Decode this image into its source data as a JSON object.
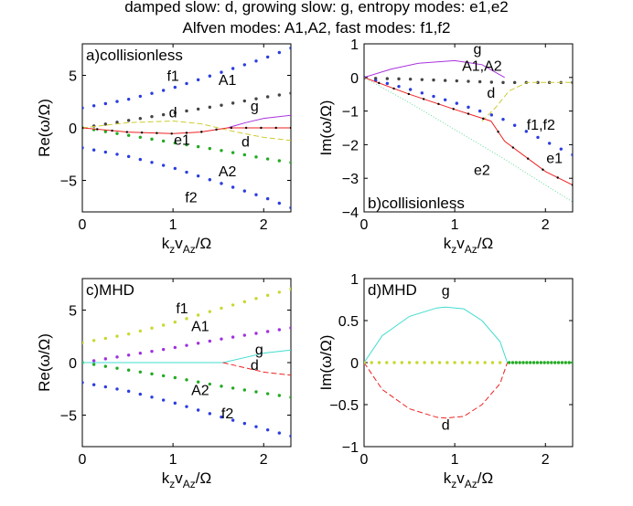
{
  "header": {
    "line1": "damped slow: d, growing slow: g, entropy modes: e1,e2",
    "line2": "Alfven modes: A1,A2, fast modes: f1,f2"
  },
  "colors": {
    "f1": "#2b3de0",
    "f2": "#2b3de0",
    "A1": "#444444",
    "A2": "#22aa22",
    "g": "#aa33dd",
    "d": "#cccc33",
    "e1": "#ee2222",
    "e2": "#66dd99",
    "mhd_f": "#c8d830",
    "mhd_A1": "#a030e0",
    "mhd_g": "#40dcd0",
    "mhd_d": "#ee2222",
    "axis": "#000000"
  },
  "chart_data": [
    {
      "id": "a",
      "type": "line",
      "title": "a)collisionless",
      "xlabel": "k_z v_Az/Ω",
      "ylabel": "Re(ω/Ω)",
      "xlim": [
        0,
        2.3
      ],
      "ylim": [
        -8,
        8
      ],
      "xticks": [
        0,
        1,
        2
      ],
      "yticks": [
        -5,
        0,
        5
      ],
      "series": [
        {
          "name": "f1",
          "x": [
            0,
            0.5,
            1,
            1.5,
            2,
            2.3
          ],
          "y": [
            1.9,
            2.7,
            3.8,
            5.2,
            6.6,
            7.6
          ]
        },
        {
          "name": "f2",
          "x": [
            0,
            0.5,
            1,
            1.5,
            2,
            2.3
          ],
          "y": [
            -1.9,
            -2.7,
            -3.8,
            -5.2,
            -6.6,
            -7.6
          ]
        },
        {
          "name": "A1",
          "x": [
            0,
            0.5,
            1,
            1.5,
            2,
            2.3
          ],
          "y": [
            0,
            0.7,
            1.4,
            2.1,
            2.9,
            3.3
          ]
        },
        {
          "name": "A2",
          "x": [
            0,
            0.5,
            1,
            1.5,
            2,
            2.3
          ],
          "y": [
            0,
            -0.7,
            -1.4,
            -2.1,
            -2.9,
            -3.3
          ]
        },
        {
          "name": "d",
          "x": [
            0,
            0.5,
            1,
            1.3,
            1.5,
            1.7,
            2,
            2.3
          ],
          "y": [
            0,
            0.5,
            0.65,
            0.4,
            0,
            -0.4,
            -0.9,
            -1.2
          ]
        },
        {
          "name": "g",
          "x": [
            1.6,
            1.8,
            2,
            2.3
          ],
          "y": [
            0,
            0.5,
            0.9,
            1.2
          ]
        },
        {
          "name": "e1",
          "x": [
            0,
            0.5,
            1,
            1.3,
            1.6,
            2,
            2.3
          ],
          "y": [
            0,
            -0.4,
            -0.55,
            -0.4,
            0,
            0,
            0
          ]
        }
      ],
      "labels": [
        {
          "text": "f1",
          "x": 1.0,
          "y": 4.5
        },
        {
          "text": "A1",
          "x": 1.6,
          "y": 4.1
        },
        {
          "text": "d",
          "x": 1.0,
          "y": 1.0
        },
        {
          "text": "g",
          "x": 1.9,
          "y": 1.6
        },
        {
          "text": "e1",
          "x": 1.1,
          "y": -1.6
        },
        {
          "text": "d",
          "x": 1.8,
          "y": -1.8
        },
        {
          "text": "A2",
          "x": 1.6,
          "y": -4.6
        },
        {
          "text": "f2",
          "x": 1.2,
          "y": -7.1
        }
      ]
    },
    {
      "id": "b",
      "type": "line",
      "title": "b)collisionless",
      "xlabel": "k_z v_Az/Ω",
      "ylabel": "Im(ω/Ω)",
      "xlim": [
        0,
        2.3
      ],
      "ylim": [
        -4,
        1
      ],
      "xticks": [
        0,
        1,
        2
      ],
      "yticks": [
        -4,
        -3,
        -2,
        -1,
        0,
        1
      ],
      "series": [
        {
          "name": "g",
          "x": [
            0,
            0.3,
            0.6,
            1,
            1.3,
            1.55
          ],
          "y": [
            0,
            0.25,
            0.42,
            0.5,
            0.38,
            0
          ]
        },
        {
          "name": "A1",
          "x": [
            0,
            0.5,
            1,
            1.5,
            2,
            2.3
          ],
          "y": [
            -0.02,
            -0.05,
            -0.1,
            -0.15,
            -0.15,
            -0.15
          ]
        },
        {
          "name": "f1",
          "x": [
            0,
            0.5,
            1,
            1.5,
            2,
            2.3
          ],
          "y": [
            0,
            -0.35,
            -0.75,
            -1.2,
            -1.9,
            -2.3
          ]
        },
        {
          "name": "d",
          "x": [
            1.3,
            1.45,
            1.6,
            1.8,
            2.3
          ],
          "y": [
            -1.3,
            -0.9,
            -0.4,
            -0.15,
            -0.15
          ]
        },
        {
          "name": "e1",
          "x": [
            0,
            0.5,
            1,
            1.4,
            1.55,
            2,
            2.3
          ],
          "y": [
            0,
            -0.5,
            -0.95,
            -1.3,
            -1.9,
            -2.8,
            -3.2
          ]
        },
        {
          "name": "e2",
          "x": [
            0,
            0.5,
            1,
            1.5,
            2,
            2.3
          ],
          "y": [
            0,
            -0.75,
            -1.55,
            -2.35,
            -3.2,
            -3.7
          ]
        }
      ],
      "labels": [
        {
          "text": "g",
          "x": 1.25,
          "y": 0.7
        },
        {
          "text": "A1,A2",
          "x": 1.3,
          "y": 0.2
        },
        {
          "text": "d",
          "x": 1.4,
          "y": -0.6
        },
        {
          "text": "f1,f2",
          "x": 1.95,
          "y": -1.55
        },
        {
          "text": "e2",
          "x": 1.3,
          "y": -2.9
        },
        {
          "text": "e1",
          "x": 2.1,
          "y": -2.55
        }
      ]
    },
    {
      "id": "c",
      "type": "line",
      "title": "c)MHD",
      "xlabel": "k_z v_Az/Ω",
      "ylabel": "Re(ω/Ω)",
      "xlim": [
        0,
        2.3
      ],
      "ylim": [
        -8,
        8
      ],
      "xticks": [
        0,
        1,
        2
      ],
      "yticks": [
        -5,
        0,
        5
      ],
      "series": [
        {
          "name": "f1",
          "x": [
            0,
            0.5,
            1,
            1.5,
            2,
            2.3
          ],
          "y": [
            1.9,
            2.7,
            3.8,
            5.1,
            6.3,
            7.0
          ]
        },
        {
          "name": "f2",
          "x": [
            0,
            0.5,
            1,
            1.5,
            2,
            2.3
          ],
          "y": [
            -1.9,
            -2.7,
            -3.8,
            -5.1,
            -6.3,
            -7.0
          ]
        },
        {
          "name": "A1",
          "x": [
            0,
            0.5,
            1,
            1.5,
            2,
            2.3
          ],
          "y": [
            0,
            0.7,
            1.4,
            2.2,
            2.9,
            3.3
          ]
        },
        {
          "name": "A2",
          "x": [
            0,
            0.5,
            1,
            1.5,
            2,
            2.3
          ],
          "y": [
            0,
            -0.7,
            -1.4,
            -2.2,
            -2.9,
            -3.3
          ]
        },
        {
          "name": "g",
          "x": [
            0,
            1.55,
            1.8,
            2,
            2.3
          ],
          "y": [
            0,
            0,
            0.5,
            0.9,
            1.2
          ]
        },
        {
          "name": "d",
          "x": [
            1.55,
            1.8,
            2,
            2.3
          ],
          "y": [
            0,
            -0.5,
            -0.9,
            -1.2
          ]
        }
      ],
      "labels": [
        {
          "text": "f1",
          "x": 1.1,
          "y": 4.7
        },
        {
          "text": "A1",
          "x": 1.3,
          "y": 3.0
        },
        {
          "text": "g",
          "x": 1.95,
          "y": 0.8
        },
        {
          "text": "d",
          "x": 1.9,
          "y": -0.7
        },
        {
          "text": "A2",
          "x": 1.3,
          "y": -3.1
        },
        {
          "text": "f2",
          "x": 1.6,
          "y": -5.3
        }
      ]
    },
    {
      "id": "d",
      "type": "line",
      "title": "d)MHD",
      "xlabel": "k_z v_Az/Ω",
      "ylabel": "Im(ω/Ω)",
      "xlim": [
        0,
        2.3
      ],
      "ylim": [
        -1,
        1
      ],
      "xticks": [
        0,
        1,
        2
      ],
      "yticks": [
        -1,
        -0.5,
        0,
        0.5,
        1
      ],
      "series": [
        {
          "name": "g",
          "x": [
            0,
            0.2,
            0.5,
            0.8,
            0.9,
            1.1,
            1.3,
            1.5,
            1.58
          ],
          "y": [
            0,
            0.32,
            0.55,
            0.65,
            0.66,
            0.64,
            0.5,
            0.25,
            0
          ]
        },
        {
          "name": "d",
          "x": [
            0,
            0.2,
            0.5,
            0.8,
            0.9,
            1.1,
            1.3,
            1.5,
            1.58
          ],
          "y": [
            0,
            -0.32,
            -0.55,
            -0.65,
            -0.66,
            -0.64,
            -0.5,
            -0.25,
            0
          ]
        },
        {
          "name": "f",
          "x": [
            0,
            0.5,
            1,
            1.5
          ],
          "y": [
            0,
            0,
            0,
            0
          ]
        },
        {
          "name": "A",
          "x": [
            1.6,
            2,
            2.3
          ],
          "y": [
            0,
            0,
            0
          ]
        }
      ],
      "labels": [
        {
          "text": "g",
          "x": 0.9,
          "y": 0.8
        },
        {
          "text": "d",
          "x": 0.9,
          "y": -0.8
        }
      ]
    }
  ]
}
